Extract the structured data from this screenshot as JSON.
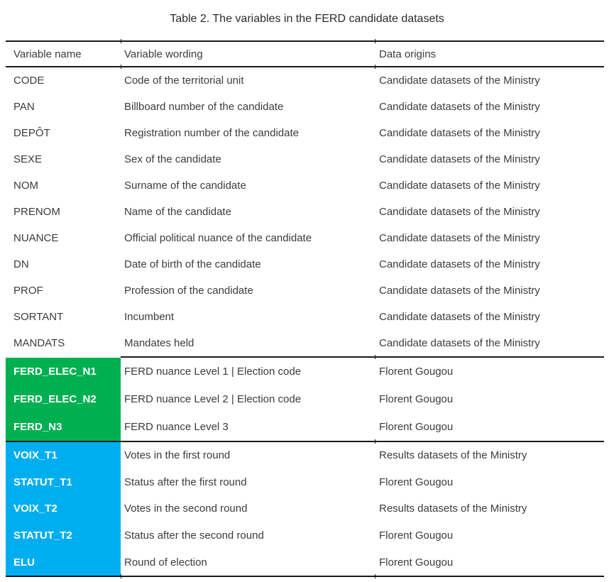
{
  "title": "Table 2. The variables in the FERD candidate datasets",
  "colors": {
    "green": "#00B050",
    "blue": "#00AEEF",
    "text": "#3C3C3C",
    "rule": "#1A1A1A"
  },
  "table": {
    "columns": [
      "Variable name",
      "Variable wording",
      "Data origins"
    ],
    "rows": [
      {
        "group": "plain",
        "name": "CODE",
        "wording": "Code of the territorial unit",
        "origin": "Candidate datasets of the Ministry"
      },
      {
        "group": "plain",
        "name": "PAN",
        "wording": "Billboard number of the candidate",
        "origin": "Candidate datasets of the Ministry"
      },
      {
        "group": "plain",
        "name": "DEPÔT",
        "wording": "Registration number of the candidate",
        "origin": "Candidate datasets of the Ministry"
      },
      {
        "group": "plain",
        "name": "SEXE",
        "wording": "Sex of the candidate",
        "origin": "Candidate datasets of the Ministry"
      },
      {
        "group": "plain",
        "name": "NOM",
        "wording": "Surname of the candidate",
        "origin": "Candidate datasets of the Ministry"
      },
      {
        "group": "plain",
        "name": "PRENOM",
        "wording": "Name of the candidate",
        "origin": "Candidate datasets of the Ministry"
      },
      {
        "group": "plain",
        "name": "NUANCE",
        "wording": "Official political nuance of the candidate",
        "origin": "Candidate datasets of the Ministry"
      },
      {
        "group": "plain",
        "name": "DN",
        "wording": "Date of birth of the candidate",
        "origin": "Candidate datasets of the Ministry"
      },
      {
        "group": "plain",
        "name": "PROF",
        "wording": "Profession of the candidate",
        "origin": "Candidate datasets of the Ministry"
      },
      {
        "group": "plain",
        "name": "SORTANT",
        "wording": "Incumbent",
        "origin": "Candidate datasets of the Ministry"
      },
      {
        "group": "plain",
        "name": "MANDATS",
        "wording": "Mandates held",
        "origin": "Candidate datasets of the Ministry"
      },
      {
        "group": "green",
        "name": "FERD_ELEC_N1",
        "wording": "FERD nuance Level 1 | Election code",
        "origin": "Florent Gougou"
      },
      {
        "group": "green",
        "name": "FERD_ELEC_N2",
        "wording": "FERD nuance Level 2 | Election code",
        "origin": "Florent Gougou"
      },
      {
        "group": "green",
        "name": "FERD_N3",
        "wording": "FERD nuance Level 3",
        "origin": "Florent Gougou"
      },
      {
        "group": "blue",
        "name": "VOIX_T1",
        "wording": "Votes in the first round",
        "origin": "Results datasets of the Ministry"
      },
      {
        "group": "blue",
        "name": "STATUT_T1",
        "wording": "Status after the first round",
        "origin": "Florent Gougou"
      },
      {
        "group": "blue",
        "name": "VOIX_T2",
        "wording": "Votes in the second round",
        "origin": "Results datasets of the Ministry"
      },
      {
        "group": "blue",
        "name": "STATUT_T2",
        "wording": "Status after the second round",
        "origin": "Florent Gougou"
      },
      {
        "group": "blue",
        "name": "ELU",
        "wording": "Round of election",
        "origin": "Florent Gougou"
      }
    ]
  }
}
